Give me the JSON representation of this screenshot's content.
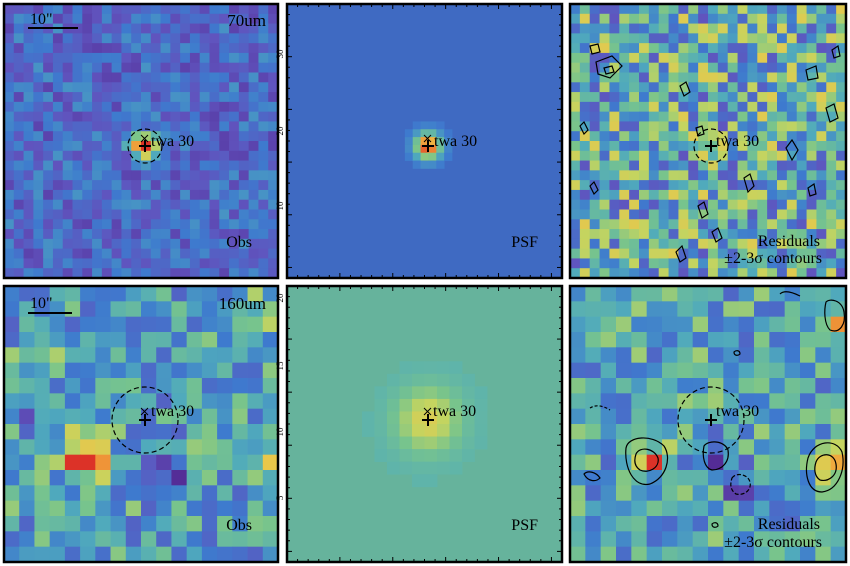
{
  "colors": {
    "background": "#ffffff",
    "frame": "#000000",
    "psf_70_bg": "#3f6ac2",
    "psf_160_bg": "#66b39c"
  },
  "source_label": "twa 30",
  "scale_bar_label": "10\"",
  "rows": [
    {
      "band": "70um",
      "panels": [
        {
          "kind": "obs",
          "label": "Obs",
          "band_label": "70um",
          "scale_label": "10\"",
          "source_label": "twa 30"
        },
        {
          "kind": "psf",
          "label": "PSF",
          "source_label": "twa 30",
          "tick_labels": [
            "30",
            "20",
            "10"
          ]
        },
        {
          "kind": "res",
          "label_line1": "Residuals",
          "label_line2": "±2-3σ contours",
          "source_label": "twa 30"
        }
      ]
    },
    {
      "band": "160um",
      "panels": [
        {
          "kind": "obs",
          "label": "Obs",
          "band_label": "160um",
          "scale_label": "10\"",
          "source_label": "twa 30"
        },
        {
          "kind": "psf",
          "label": "PSF",
          "source_label": "twa 30",
          "tick_labels": [
            "20",
            "15",
            "10",
            "5"
          ]
        },
        {
          "kind": "res",
          "label_line1": "Residuals",
          "label_line2": "±2-3σ contours",
          "source_label": "twa 30"
        }
      ]
    }
  ]
}
